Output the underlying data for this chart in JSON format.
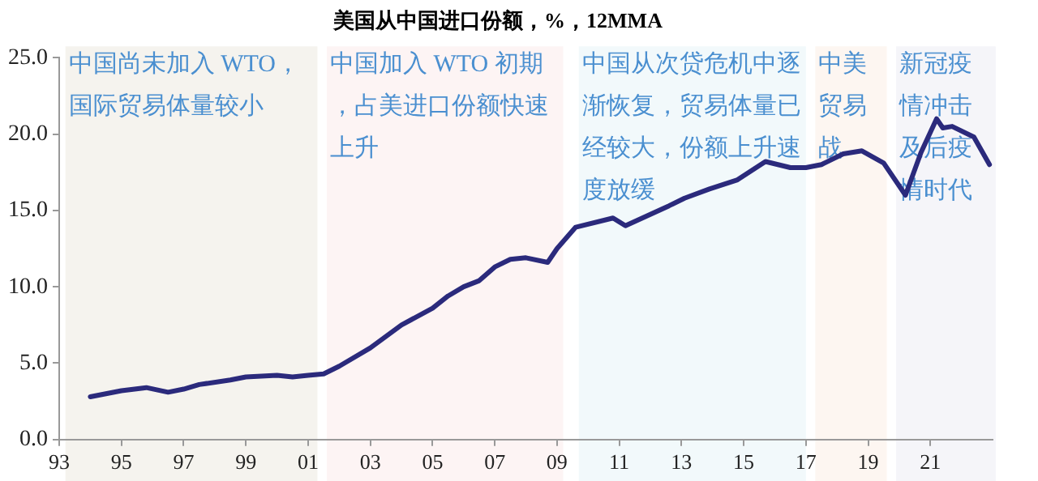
{
  "chart_data": {
    "type": "line",
    "title": "美国从中国进口份额，%，12MMA",
    "x": [
      1994.0,
      1995.0,
      1995.8,
      1996.5,
      1997.0,
      1997.5,
      1998.5,
      1999.0,
      2000.0,
      2000.5,
      2001.0,
      2001.5,
      2002.0,
      2003.0,
      2004.0,
      2005.0,
      2005.5,
      2006.0,
      2006.5,
      2007.0,
      2007.5,
      2008.0,
      2008.7,
      2009.0,
      2009.6,
      2010.8,
      2011.2,
      2012.6,
      2013.1,
      2013.9,
      2014.8,
      2015.7,
      2016.5,
      2017.0,
      2017.5,
      2018.2,
      2018.8,
      2019.5,
      2020.2,
      2020.7,
      2021.2,
      2021.4,
      2021.7,
      2022.4,
      2022.9
    ],
    "series": [
      {
        "color": "#2b2a7c",
        "values": [
          2.8,
          3.2,
          3.4,
          3.1,
          3.3,
          3.6,
          3.9,
          4.1,
          4.2,
          4.1,
          4.2,
          4.3,
          4.8,
          6.0,
          7.5,
          8.6,
          9.4,
          10.0,
          10.4,
          11.3,
          11.8,
          11.9,
          11.6,
          12.5,
          13.9,
          14.5,
          14.0,
          15.3,
          15.8,
          16.4,
          17.0,
          18.2,
          17.8,
          17.8,
          18.0,
          18.7,
          18.9,
          18.1,
          16.0,
          18.8,
          21.0,
          20.4,
          20.5,
          19.8,
          18.0
        ]
      }
    ],
    "xlim": [
      1993,
      2023
    ],
    "xticks": [
      {
        "value": 1993,
        "label": "93"
      },
      {
        "value": 1995,
        "label": "95"
      },
      {
        "value": 1997,
        "label": "97"
      },
      {
        "value": 1999,
        "label": "99"
      },
      {
        "value": 2001,
        "label": "01"
      },
      {
        "value": 2003,
        "label": "03"
      },
      {
        "value": 2005,
        "label": "05"
      },
      {
        "value": 2007,
        "label": "07"
      },
      {
        "value": 2009,
        "label": "09"
      },
      {
        "value": 2011,
        "label": "11"
      },
      {
        "value": 2013,
        "label": "13"
      },
      {
        "value": 2015,
        "label": "15"
      },
      {
        "value": 2017,
        "label": "17"
      },
      {
        "value": 2019,
        "label": "19"
      },
      {
        "value": 2021,
        "label": "21"
      }
    ],
    "ylim": [
      0,
      25
    ],
    "yticks": [
      {
        "value": 0,
        "label": "0.0"
      },
      {
        "value": 5,
        "label": "5.0"
      },
      {
        "value": 10,
        "label": "10.0"
      },
      {
        "value": 15,
        "label": "15.0"
      },
      {
        "value": 20,
        "label": "20.0"
      },
      {
        "value": 25,
        "label": "25.0"
      }
    ],
    "grid": false,
    "legend": false,
    "marker": "none",
    "line_style": "solid",
    "bands": [
      {
        "axis": "x",
        "from": 1993.2,
        "to": 2001.3,
        "color": "#f5f3ee",
        "label": "中国尚未加入 WTO，国际贸易体量较小"
      },
      {
        "axis": "x",
        "from": 2001.6,
        "to": 2009.2,
        "color": "#fdf4f4",
        "label": "中国加入 WTO 初期，占美进口份额快速上升"
      },
      {
        "axis": "x",
        "from": 2009.7,
        "to": 2017.0,
        "color": "#f2f9fb",
        "label": "中国从次贷危机中逐渐恢复，贸易体量已经较大，份额上升速度放缓"
      },
      {
        "axis": "x",
        "from": 2017.3,
        "to": 2019.6,
        "color": "#fdf6f1",
        "label": "中美贸易战"
      },
      {
        "axis": "x",
        "from": 2019.9,
        "to": 2023.1,
        "color": "#f5f5f9",
        "label": "新冠疫情冲击及后疫情时代"
      }
    ]
  }
}
